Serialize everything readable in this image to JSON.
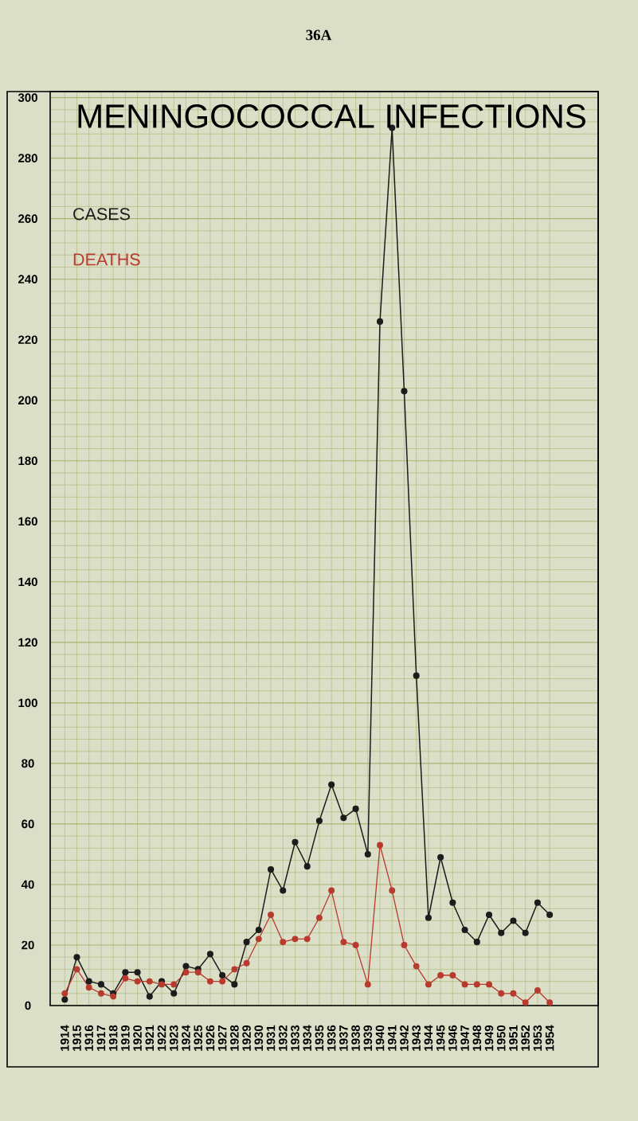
{
  "chart_data": {
    "type": "line",
    "title": "MENINGOCOCCAL INFECTIONS",
    "annotations": [
      "36A"
    ],
    "x": [
      1914,
      1915,
      1916,
      1917,
      1918,
      1919,
      1920,
      1921,
      1922,
      1923,
      1924,
      1925,
      1926,
      1927,
      1928,
      1929,
      1930,
      1931,
      1932,
      1933,
      1934,
      1935,
      1936,
      1937,
      1938,
      1939,
      1940,
      1941,
      1942,
      1943,
      1944,
      1945,
      1946,
      1947,
      1948,
      1949,
      1950,
      1951,
      1952,
      1953,
      1954
    ],
    "xlim": [
      1912.8,
      1958
    ],
    "xticks": [
      1914,
      1915,
      1916,
      1917,
      1918,
      1919,
      1920,
      1921,
      1922,
      1923,
      1924,
      1925,
      1926,
      1927,
      1928,
      1929,
      1930,
      1931,
      1932,
      1933,
      1934,
      1935,
      1936,
      1937,
      1938,
      1939,
      1940,
      1941,
      1942,
      1943,
      1944,
      1945,
      1946,
      1947,
      1948,
      1949,
      1950,
      1951,
      1952,
      1953,
      1954
    ],
    "ylim": [
      0,
      302
    ],
    "yticks": [
      0,
      20,
      40,
      60,
      80,
      100,
      120,
      140,
      160,
      180,
      200,
      220,
      240,
      260,
      280,
      300
    ],
    "series": [
      {
        "name": "CASES",
        "color": "#1c1c1c",
        "values": [
          2,
          16,
          8,
          7,
          4,
          11,
          11,
          3,
          8,
          4,
          13,
          12,
          17,
          10,
          7,
          21,
          25,
          45,
          38,
          54,
          46,
          61,
          73,
          62,
          65,
          50,
          226,
          290,
          203,
          109,
          29,
          49,
          34,
          25,
          21,
          30,
          24,
          28,
          24,
          34,
          30
        ]
      },
      {
        "name": "DEATHS",
        "color": "#b83a2e",
        "values": [
          4,
          12,
          6,
          4,
          3,
          9,
          8,
          8,
          7,
          7,
          11,
          11,
          8,
          8,
          12,
          14,
          22,
          30,
          21,
          22,
          22,
          29,
          38,
          21,
          20,
          7,
          53,
          38,
          20,
          13,
          7,
          10,
          10,
          7,
          7,
          7,
          4,
          4,
          1,
          5,
          1
        ]
      }
    ],
    "grid": true,
    "legend": "top left",
    "marker": "circle",
    "line_style": "solid"
  }
}
